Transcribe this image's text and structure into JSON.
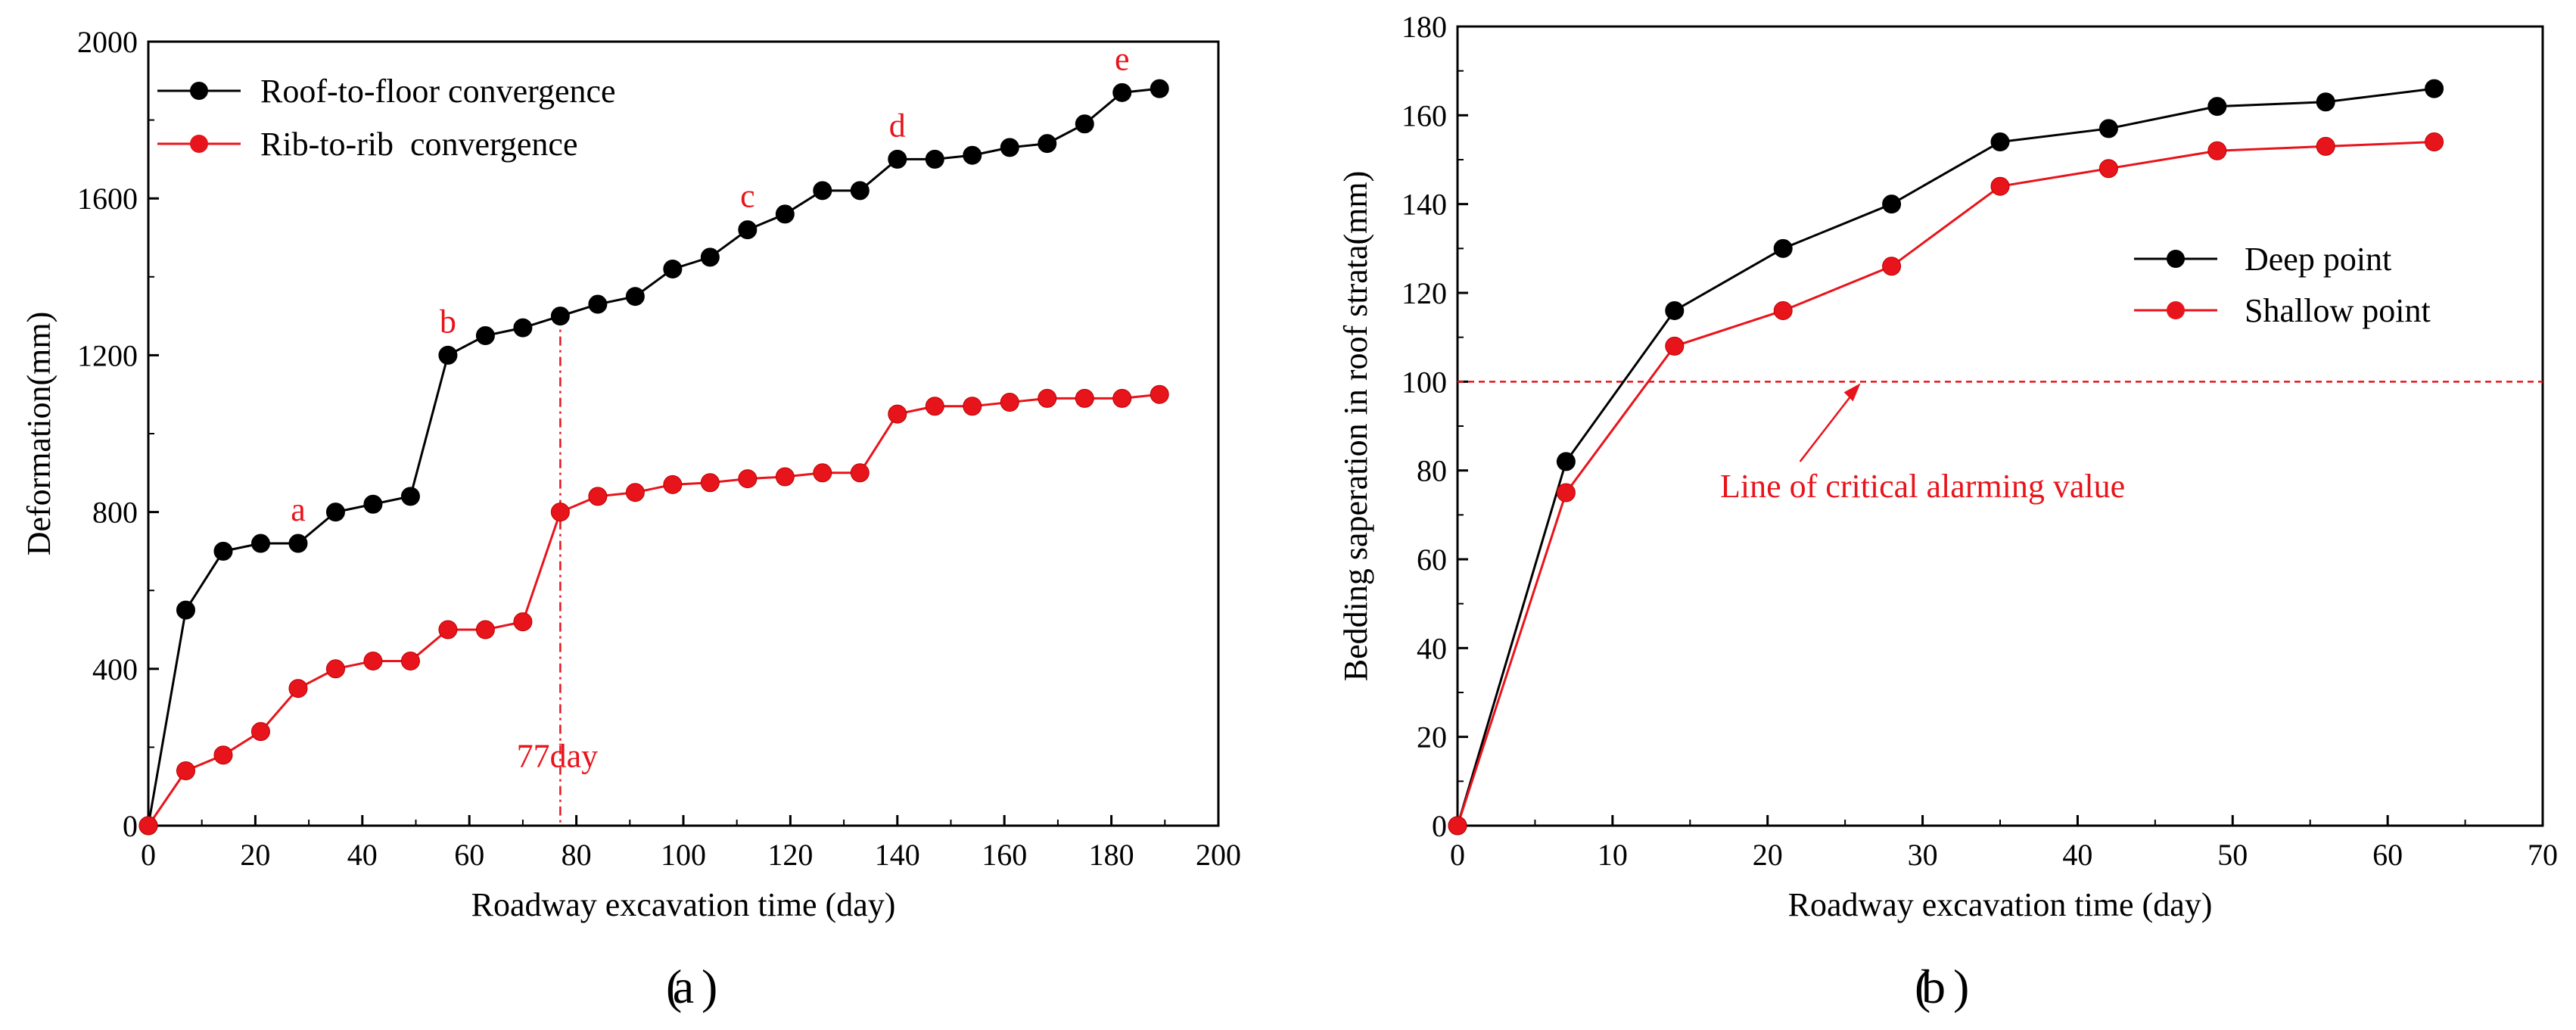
{
  "colors": {
    "black_series": "#000000",
    "red_series": "#e8141b",
    "axis": "#000000"
  },
  "chart_data": [
    {
      "type": "line",
      "panel_label": "a",
      "title": "",
      "xlabel": "Roadway excavation time (day)",
      "ylabel": "Deformation(mm)",
      "xlim": [
        0,
        200
      ],
      "ylim": [
        0,
        2000
      ],
      "xticks": [
        0,
        20,
        40,
        60,
        80,
        100,
        120,
        140,
        160,
        180,
        200
      ],
      "yticks": [
        0,
        400,
        800,
        1200,
        1600,
        2000
      ],
      "grid": false,
      "legend_position": "top-left",
      "series": [
        {
          "name": "Roof-to-floor convergence",
          "color": "#000000",
          "x": [
            0,
            7,
            14,
            21,
            28,
            35,
            42,
            49,
            56,
            63,
            70,
            77,
            84,
            91,
            98,
            105,
            112,
            119,
            126,
            133,
            140,
            147,
            154,
            161,
            168,
            175,
            182,
            189
          ],
          "y": [
            0,
            550,
            700,
            720,
            720,
            800,
            820,
            840,
            1200,
            1250,
            1270,
            1300,
            1330,
            1350,
            1420,
            1450,
            1520,
            1560,
            1620,
            1620,
            1700,
            1700,
            1710,
            1730,
            1740,
            1790,
            1870,
            1880
          ]
        },
        {
          "name": "Rib-to-rib  convergence",
          "color": "#e8141b",
          "x": [
            0,
            7,
            14,
            21,
            28,
            35,
            42,
            49,
            56,
            63,
            70,
            77,
            84,
            91,
            98,
            105,
            112,
            119,
            126,
            133,
            140,
            147,
            154,
            161,
            168,
            175,
            182,
            189
          ],
          "y": [
            0,
            140,
            180,
            240,
            350,
            400,
            420,
            420,
            500,
            500,
            520,
            800,
            840,
            850,
            870,
            875,
            885,
            890,
            900,
            900,
            1050,
            1070,
            1070,
            1080,
            1090,
            1090,
            1090,
            1100
          ]
        }
      ],
      "annotations": [
        {
          "text": "a",
          "x": 28,
          "y": 720
        },
        {
          "text": "b",
          "x": 56,
          "y": 1200
        },
        {
          "text": "c",
          "x": 112,
          "y": 1520
        },
        {
          "text": "d",
          "x": 140,
          "y": 1700
        },
        {
          "text": "e",
          "x": 182,
          "y": 1870
        }
      ],
      "vline": {
        "x": 77,
        "label": "77day",
        "y_top": 1300
      }
    },
    {
      "type": "line",
      "panel_label": "b",
      "title": "",
      "xlabel": "Roadway excavation time (day)",
      "ylabel": "Bedding saperation in roof strata(mm)",
      "xlim": [
        0,
        70
      ],
      "ylim": [
        0,
        180
      ],
      "xticks": [
        0,
        10,
        20,
        30,
        40,
        50,
        60,
        70
      ],
      "yticks": [
        0,
        20,
        40,
        60,
        80,
        100,
        120,
        140,
        160,
        180
      ],
      "grid": false,
      "legend_position": "center-right",
      "series": [
        {
          "name": "Deep point",
          "color": "#000000",
          "x": [
            0,
            7,
            14,
            21,
            28,
            35,
            42,
            49,
            56,
            63
          ],
          "y": [
            0,
            82,
            116,
            130,
            140,
            154,
            157,
            162,
            163,
            166
          ]
        },
        {
          "name": "Shallow point",
          "color": "#e8141b",
          "x": [
            0,
            7,
            14,
            21,
            28,
            35,
            42,
            49,
            56,
            63
          ],
          "y": [
            0,
            75,
            108,
            116,
            126,
            144,
            148,
            152,
            153,
            154
          ]
        }
      ],
      "hline": {
        "y": 100,
        "label": "Line of critical alarming value",
        "arrow_x": 26
      }
    }
  ]
}
